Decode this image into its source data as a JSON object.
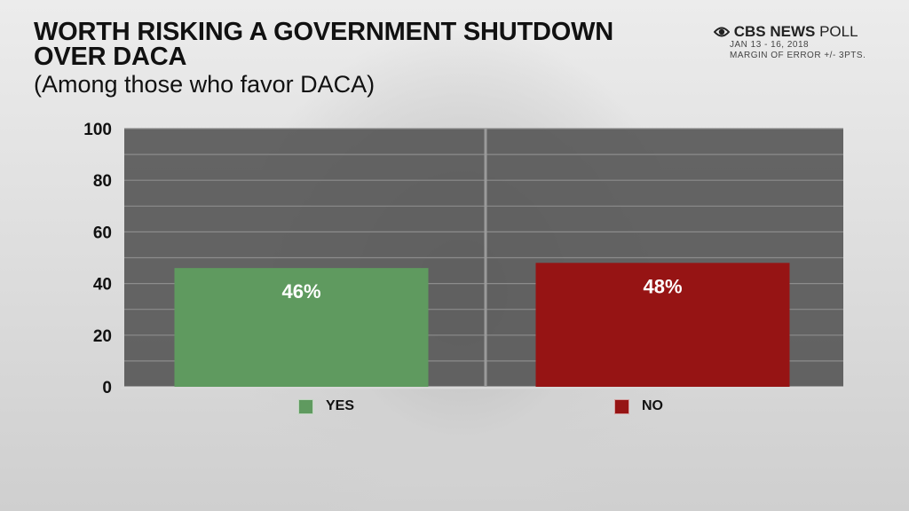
{
  "header": {
    "title": "WORTH RISKING A GOVERNMENT SHUTDOWN OVER DACA",
    "subtitle": "(Among those who favor DACA)"
  },
  "brand": {
    "name_bold": "CBS NEWS",
    "name_regular": " POLL",
    "date": "JAN 13 - 16, 2018",
    "margin": "MARGIN OF ERROR +/- 3PTS.",
    "logo_icon": "cbs-eye-icon"
  },
  "colors": {
    "plot_bg": "#555555",
    "gridline": "#8c8c8c",
    "yes": "#5f9a5f",
    "no": "#961414",
    "divider": "#9a9a9a"
  },
  "chart_data": {
    "type": "bar",
    "title": "WORTH RISKING A GOVERNMENT SHUTDOWN OVER DACA",
    "subtitle": "(Among those who favor DACA)",
    "categories": [
      "YES",
      "NO"
    ],
    "values": [
      46,
      48
    ],
    "value_labels": [
      "46%",
      "48%"
    ],
    "series_colors": [
      "#5f9a5f",
      "#961414"
    ],
    "ylim": [
      0,
      100
    ],
    "yticks": [
      0,
      20,
      40,
      60,
      80,
      100
    ],
    "grid": true,
    "legend": "bottom"
  }
}
